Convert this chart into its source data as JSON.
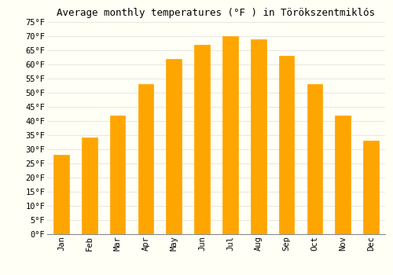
{
  "title": "Average monthly temperatures (°F ) in Törökszentmiklós",
  "months": [
    "Jan",
    "Feb",
    "Mar",
    "Apr",
    "May",
    "Jun",
    "Jul",
    "Aug",
    "Sep",
    "Oct",
    "Nov",
    "Dec"
  ],
  "values": [
    28,
    34,
    42,
    53,
    62,
    67,
    70,
    69,
    63,
    53,
    42,
    33
  ],
  "bar_color_top": "#FFA500",
  "bar_color_bottom": "#FFB733",
  "bar_edge_color": "#E69500",
  "ylim": [
    0,
    75
  ],
  "yticks": [
    0,
    5,
    10,
    15,
    20,
    25,
    30,
    35,
    40,
    45,
    50,
    55,
    60,
    65,
    70,
    75
  ],
  "ytick_labels": [
    "0°F",
    "5°F",
    "10°F",
    "15°F",
    "20°F",
    "25°F",
    "30°F",
    "35°F",
    "40°F",
    "45°F",
    "50°F",
    "55°F",
    "60°F",
    "65°F",
    "70°F",
    "75°F"
  ],
  "background_color": "#FFFFF5",
  "grid_color": "#DDDDDD",
  "title_fontsize": 9,
  "tick_fontsize": 7.5,
  "font_family": "monospace",
  "bar_width": 0.55
}
